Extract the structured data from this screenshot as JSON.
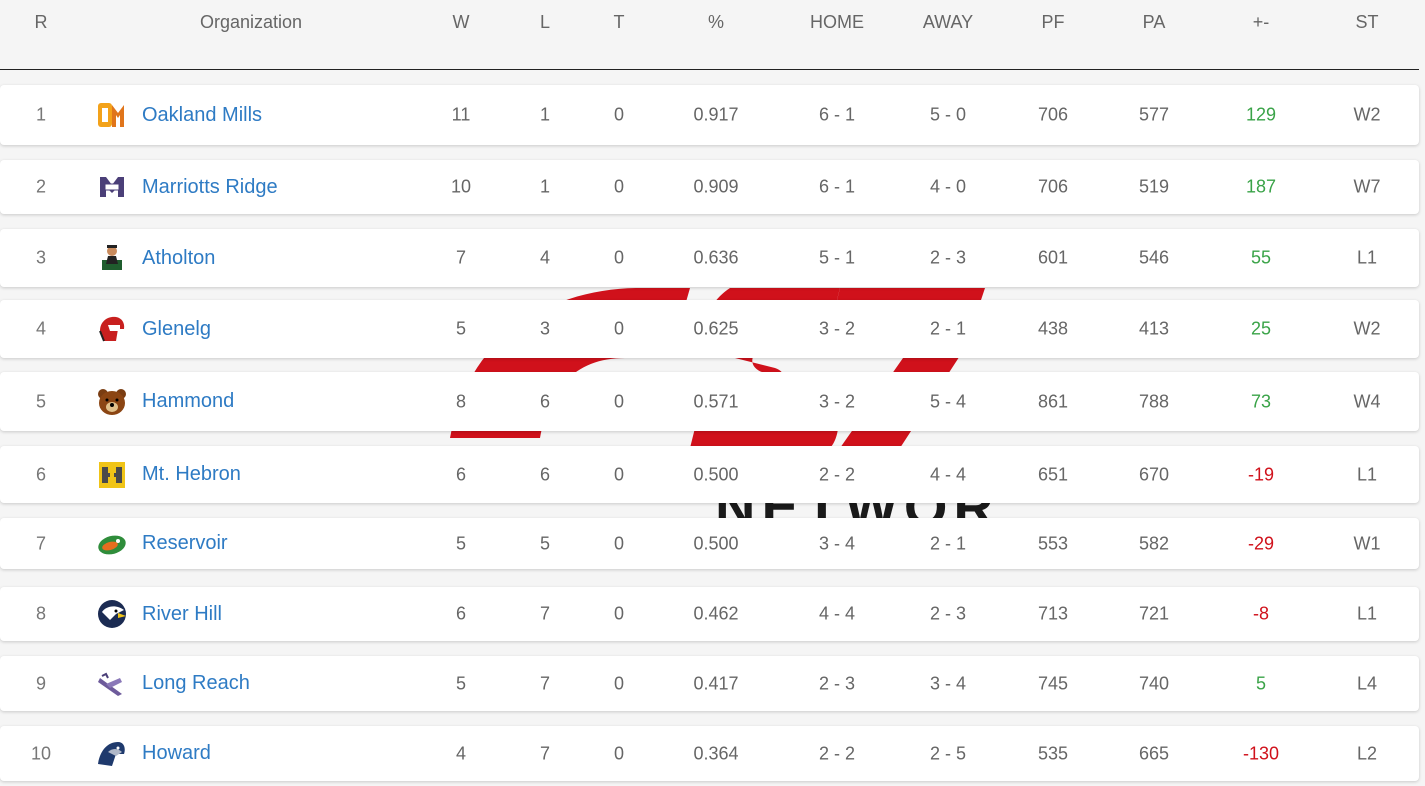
{
  "header": {
    "rank": "R",
    "organization": "Organization",
    "wins": "W",
    "losses": "L",
    "ties": "T",
    "pct": "%",
    "home": "HOME",
    "away": "AWAY",
    "pf": "PF",
    "pa": "PA",
    "diff": "+-",
    "streak": "ST"
  },
  "rows": [
    {
      "rank": "1",
      "team": "Oakland Mills",
      "logo": "oakland-mills-logo",
      "w": "11",
      "l": "1",
      "t": "0",
      "pct": "0.917",
      "home": "6 - 1",
      "away": "5 - 0",
      "pf": "706",
      "pa": "577",
      "diff": "129",
      "diff_sign": "pos",
      "st": "W2"
    },
    {
      "rank": "2",
      "team": "Marriotts Ridge",
      "logo": "marriotts-ridge-logo",
      "w": "10",
      "l": "1",
      "t": "0",
      "pct": "0.909",
      "home": "6 - 1",
      "away": "4 - 0",
      "pf": "706",
      "pa": "519",
      "diff": "187",
      "diff_sign": "pos",
      "st": "W7"
    },
    {
      "rank": "3",
      "team": "Atholton",
      "logo": "atholton-logo",
      "w": "7",
      "l": "4",
      "t": "0",
      "pct": "0.636",
      "home": "5 - 1",
      "away": "2 - 3",
      "pf": "601",
      "pa": "546",
      "diff": "55",
      "diff_sign": "pos",
      "st": "L1"
    },
    {
      "rank": "4",
      "team": "Glenelg",
      "logo": "glenelg-logo",
      "w": "5",
      "l": "3",
      "t": "0",
      "pct": "0.625",
      "home": "3 - 2",
      "away": "2 - 1",
      "pf": "438",
      "pa": "413",
      "diff": "25",
      "diff_sign": "pos",
      "st": "W2"
    },
    {
      "rank": "5",
      "team": "Hammond",
      "logo": "hammond-logo",
      "w": "8",
      "l": "6",
      "t": "0",
      "pct": "0.571",
      "home": "3 - 2",
      "away": "5 - 4",
      "pf": "861",
      "pa": "788",
      "diff": "73",
      "diff_sign": "pos",
      "st": "W4"
    },
    {
      "rank": "6",
      "team": "Mt. Hebron",
      "logo": "mt-hebron-logo",
      "w": "6",
      "l": "6",
      "t": "0",
      "pct": "0.500",
      "home": "2 - 2",
      "away": "4 - 4",
      "pf": "651",
      "pa": "670",
      "diff": "-19",
      "diff_sign": "neg",
      "st": "L1"
    },
    {
      "rank": "7",
      "team": "Reservoir",
      "logo": "reservoir-logo",
      "w": "5",
      "l": "5",
      "t": "0",
      "pct": "0.500",
      "home": "3 - 4",
      "away": "2 - 1",
      "pf": "553",
      "pa": "582",
      "diff": "-29",
      "diff_sign": "neg",
      "st": "W1"
    },
    {
      "rank": "8",
      "team": "River Hill",
      "logo": "river-hill-logo",
      "w": "6",
      "l": "7",
      "t": "0",
      "pct": "0.462",
      "home": "4 - 4",
      "away": "2 - 3",
      "pf": "713",
      "pa": "721",
      "diff": "-8",
      "diff_sign": "neg",
      "st": "L1"
    },
    {
      "rank": "9",
      "team": "Long Reach",
      "logo": "long-reach-logo",
      "w": "5",
      "l": "7",
      "t": "0",
      "pct": "0.417",
      "home": "2 - 3",
      "away": "3 - 4",
      "pf": "745",
      "pa": "740",
      "diff": "5",
      "diff_sign": "pos",
      "st": "L4"
    },
    {
      "rank": "10",
      "team": "Howard",
      "logo": "howard-logo",
      "w": "4",
      "l": "7",
      "t": "0",
      "pct": "0.364",
      "home": "2 - 2",
      "away": "2 - 5",
      "pf": "535",
      "pa": "665",
      "diff": "-130",
      "diff_sign": "neg",
      "st": "L2"
    }
  ],
  "watermark": {
    "text": "NETWORK",
    "color": "#d0111b"
  },
  "colors": {
    "link": "#2e7bc4",
    "positive": "#3aa348",
    "negative": "#d0111b"
  }
}
